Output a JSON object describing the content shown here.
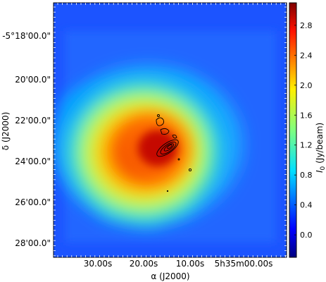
{
  "chart_data": {
    "type": "heatmap",
    "title": "",
    "xlabel": "α (J2000)",
    "ylabel": "δ (J2000)",
    "x_ticks": [
      "30.00s",
      "20.00s",
      "10.00s",
      "5h35m00.00s"
    ],
    "y_ticks": [
      "-5°18'00.0\"",
      "20'00.0\"",
      "22'00.0\"",
      "24'00.0\"",
      "26'00.0\"",
      "28'00.0\""
    ],
    "colorbar": {
      "label_main": "I",
      "label_sub": "0",
      "label_unit": " (Jy/beam)",
      "range": [
        -0.3,
        3.1
      ],
      "ticks": [
        {
          "value": 0.0,
          "label": "0.0"
        },
        {
          "value": 0.4,
          "label": "0.4"
        },
        {
          "value": 0.8,
          "label": "0.8"
        },
        {
          "value": 1.2,
          "label": "1.2"
        },
        {
          "value": 1.6,
          "label": "1.6"
        },
        {
          "value": 2.0,
          "label": "2.0"
        },
        {
          "value": 2.4,
          "label": "2.4"
        },
        {
          "value": 2.8,
          "label": "2.8"
        }
      ],
      "colormap": "jet"
    },
    "map": {
      "background_value": 0.05,
      "peak_value": 3.0,
      "peak_position": {
        "ra_offset_s": 17.5,
        "dec_arcmin": 23.4
      },
      "contours": "black, compact source east of peak"
    },
    "grid": false,
    "legend": "none"
  }
}
